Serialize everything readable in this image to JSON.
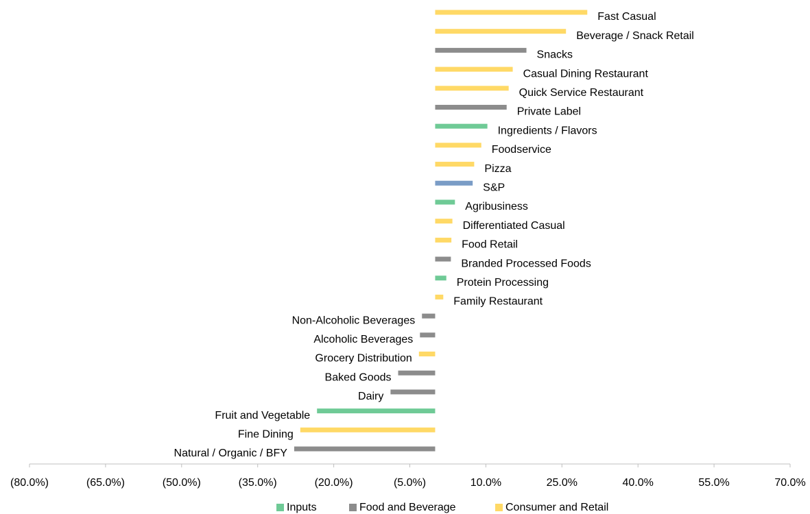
{
  "chart_data": {
    "type": "bar",
    "orientation": "horizontal",
    "categories": [
      "Fast Casual",
      "Beverage / Snack Retail",
      "Snacks",
      "Casual Dining Restaurant",
      "Quick Service Restaurant",
      "Private Label",
      "Ingredients / Flavors",
      "Foodservice",
      "Pizza",
      "S&P",
      "Agribusiness",
      "Differentiated Casual",
      "Food Retail",
      "Branded Processed Foods",
      "Protein Processing",
      "Family Restaurant",
      "Non-Alcoholic Beverages",
      "Alcoholic Beverages",
      "Grocery Distribution",
      "Baked Goods",
      "Dairy",
      "Fruit and Vegetable",
      "Fine Dining",
      "Natural / Organic / BFY"
    ],
    "values": [
      30.0,
      25.8,
      18.0,
      15.3,
      14.5,
      14.1,
      10.3,
      9.1,
      7.7,
      7.4,
      3.9,
      3.4,
      3.2,
      3.1,
      2.2,
      1.6,
      -2.6,
      -3.0,
      -3.2,
      -7.3,
      -8.8,
      -23.3,
      -26.6,
      -27.8
    ],
    "colors": [
      "#ffd966",
      "#ffd966",
      "#8c8c8c",
      "#ffd966",
      "#ffd966",
      "#8c8c8c",
      "#6fca96",
      "#ffd966",
      "#ffd966",
      "#7a9cc6",
      "#6fca96",
      "#ffd966",
      "#ffd966",
      "#8c8c8c",
      "#6fca96",
      "#ffd966",
      "#8c8c8c",
      "#8c8c8c",
      "#ffd966",
      "#8c8c8c",
      "#8c8c8c",
      "#6fca96",
      "#ffd966",
      "#8c8c8c"
    ],
    "legend": [
      {
        "name": "Inputs",
        "color": "#6fca96"
      },
      {
        "name": "Food and Beverage",
        "color": "#8c8c8c"
      },
      {
        "name": "Consumer and Retail",
        "color": "#ffd966"
      }
    ],
    "xlim": [
      -80,
      70
    ],
    "xticks": [
      {
        "value": -80,
        "label": "(80.0%)"
      },
      {
        "value": -65,
        "label": "(65.0%)"
      },
      {
        "value": -50,
        "label": "(50.0%)"
      },
      {
        "value": -35,
        "label": "(35.0%)"
      },
      {
        "value": -20,
        "label": "(20.0%)"
      },
      {
        "value": -5,
        "label": "(5.0%)"
      },
      {
        "value": 10,
        "label": "10.0%"
      },
      {
        "value": 25,
        "label": "25.0%"
      },
      {
        "value": 40,
        "label": "40.0%"
      },
      {
        "value": 55,
        "label": "55.0%"
      },
      {
        "value": 70,
        "label": "70.0%"
      }
    ]
  }
}
